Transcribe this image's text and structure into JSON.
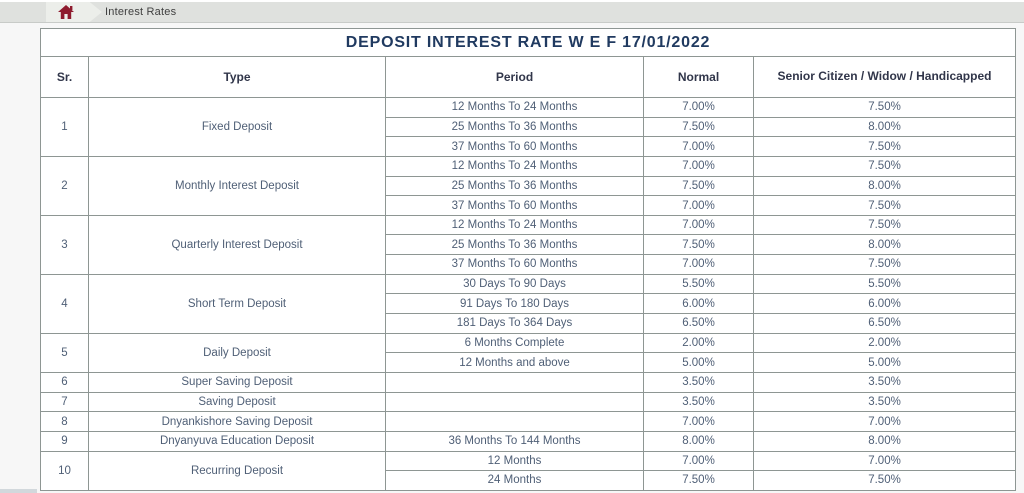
{
  "breadcrumb": {
    "home_icon": "home",
    "label": "Interest Rates"
  },
  "table": {
    "title": "DEPOSIT INTEREST RATE W E F 17/01/2022",
    "headers": {
      "sr": "Sr.",
      "type": "Type",
      "period": "Period",
      "normal": "Normal",
      "senior": "Senior Citizen / Widow / Handicapped"
    },
    "rows": [
      {
        "sr": "1",
        "type": "Fixed Deposit",
        "periods": [
          {
            "period": "12 Months To 24 Months",
            "normal": "7.00%",
            "senior": "7.50%"
          },
          {
            "period": "25 Months To 36 Months",
            "normal": "7.50%",
            "senior": "8.00%"
          },
          {
            "period": "37 Months To 60 Months",
            "normal": "7.00%",
            "senior": "7.50%"
          }
        ]
      },
      {
        "sr": "2",
        "type": "Monthly Interest Deposit",
        "periods": [
          {
            "period": "12 Months To 24 Months",
            "normal": "7.00%",
            "senior": "7.50%"
          },
          {
            "period": "25 Months To 36 Months",
            "normal": "7.50%",
            "senior": "8.00%"
          },
          {
            "period": "37 Months To 60 Months",
            "normal": "7.00%",
            "senior": "7.50%"
          }
        ]
      },
      {
        "sr": "3",
        "type": "Quarterly Interest Deposit",
        "periods": [
          {
            "period": "12 Months To 24 Months",
            "normal": "7.00%",
            "senior": "7.50%"
          },
          {
            "period": "25 Months To 36 Months",
            "normal": "7.50%",
            "senior": "8.00%"
          },
          {
            "period": "37 Months To 60 Months",
            "normal": "7.00%",
            "senior": "7.50%"
          }
        ]
      },
      {
        "sr": "4",
        "type": "Short Term Deposit",
        "periods": [
          {
            "period": "30 Days To 90 Days",
            "normal": "5.50%",
            "senior": "5.50%"
          },
          {
            "period": "91 Days To 180 Days",
            "normal": "6.00%",
            "senior": "6.00%"
          },
          {
            "period": "181 Days To 364 Days",
            "normal": "6.50%",
            "senior": "6.50%"
          }
        ]
      },
      {
        "sr": "5",
        "type": "Daily Deposit",
        "periods": [
          {
            "period": "6 Months Complete",
            "normal": "2.00%",
            "senior": "2.00%"
          },
          {
            "period": "12 Months and above",
            "normal": "5.00%",
            "senior": "5.00%"
          }
        ]
      },
      {
        "sr": "6",
        "type": "Super Saving Deposit",
        "periods": [
          {
            "period": "",
            "normal": "3.50%",
            "senior": "3.50%"
          }
        ]
      },
      {
        "sr": "7",
        "type": "Saving Deposit",
        "periods": [
          {
            "period": "",
            "normal": "3.50%",
            "senior": "3.50%"
          }
        ]
      },
      {
        "sr": "8",
        "type": "Dnyankishore Saving Deposit",
        "periods": [
          {
            "period": "",
            "normal": "7.00%",
            "senior": "7.00%"
          }
        ]
      },
      {
        "sr": "9",
        "type": "Dnyanyuva Education Deposit",
        "periods": [
          {
            "period": "36 Months To 144 Months",
            "normal": "8.00%",
            "senior": "8.00%"
          }
        ]
      },
      {
        "sr": "10",
        "type": "Recurring Deposit",
        "periods": [
          {
            "period": "12 Months",
            "normal": "7.00%",
            "senior": "7.00%"
          },
          {
            "period": "24 Months",
            "normal": "7.50%",
            "senior": "7.50%"
          }
        ]
      }
    ]
  },
  "colors": {
    "accent_maroon": "#8e1b2e",
    "title_navy": "#203a60",
    "body_text": "#4f5f76",
    "cell_border": "#8e9693",
    "bar_background": "#dfe1de"
  }
}
